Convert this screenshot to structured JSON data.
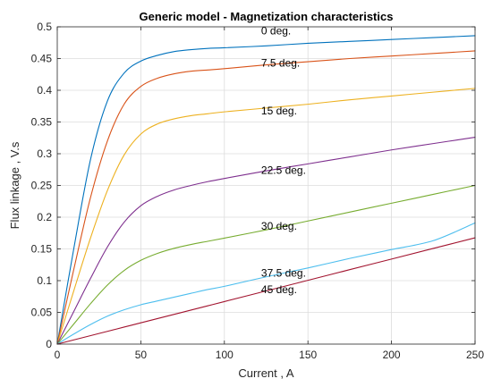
{
  "chart_data": {
    "type": "line",
    "title": "Generic model - Magnetization characteristics",
    "xlabel": "Current , A",
    "ylabel": "Flux linkage , V.s",
    "xlim": [
      0,
      250
    ],
    "ylim": [
      0,
      0.5
    ],
    "xticks": [
      0,
      50,
      100,
      150,
      200,
      250
    ],
    "yticks": [
      0,
      0.05,
      0.1,
      0.15,
      0.2,
      0.25,
      0.3,
      0.35,
      0.4,
      0.45,
      0.5
    ],
    "xtick_labels": [
      "0",
      "50",
      "100",
      "150",
      "200",
      "250"
    ],
    "ytick_labels": [
      "0",
      "0.05",
      "0.1",
      "0.15",
      "0.2",
      "0.25",
      "0.3",
      "0.35",
      "0.4",
      "0.45",
      "0.5"
    ],
    "grid": true,
    "x": [
      0,
      10,
      20,
      30,
      40,
      50,
      60,
      70,
      80,
      90,
      100,
      125,
      150,
      175,
      200,
      225,
      250
    ],
    "series": [
      {
        "name": "0 deg.",
        "color": "#0072BD",
        "values": [
          0,
          0.152,
          0.292,
          0.383,
          0.427,
          0.446,
          0.455,
          0.461,
          0.464,
          0.466,
          0.467,
          0.47,
          0.474,
          0.477,
          0.48,
          0.483,
          0.486
        ]
      },
      {
        "name": "7.5 deg.",
        "color": "#D95319",
        "values": [
          0,
          0.119,
          0.232,
          0.32,
          0.378,
          0.406,
          0.419,
          0.426,
          0.43,
          0.432,
          0.434,
          0.44,
          0.445,
          0.45,
          0.454,
          0.458,
          0.462
        ]
      },
      {
        "name": "15 deg.",
        "color": "#EDB120",
        "values": [
          0,
          0.085,
          0.168,
          0.242,
          0.298,
          0.331,
          0.347,
          0.355,
          0.36,
          0.363,
          0.366,
          0.372,
          0.378,
          0.385,
          0.391,
          0.397,
          0.403
        ]
      },
      {
        "name": "22.5 deg.",
        "color": "#7E2F8E",
        "values": [
          0,
          0.052,
          0.104,
          0.153,
          0.192,
          0.218,
          0.233,
          0.243,
          0.25,
          0.256,
          0.261,
          0.273,
          0.284,
          0.295,
          0.306,
          0.316,
          0.326
        ]
      },
      {
        "name": "30 deg.",
        "color": "#77AC30",
        "values": [
          0,
          0.032,
          0.064,
          0.093,
          0.116,
          0.132,
          0.143,
          0.151,
          0.157,
          0.162,
          0.167,
          0.18,
          0.194,
          0.208,
          0.222,
          0.236,
          0.25
        ]
      },
      {
        "name": "37.5 deg.",
        "color": "#4DBEEE",
        "values": [
          0,
          0.016,
          0.031,
          0.044,
          0.054,
          0.062,
          0.068,
          0.074,
          0.08,
          0.086,
          0.091,
          0.106,
          0.12,
          0.135,
          0.149,
          0.163,
          0.191
        ]
      },
      {
        "name": "45 deg.",
        "color": "#A2142F",
        "values": [
          0,
          0.0067,
          0.0134,
          0.0201,
          0.0268,
          0.0335,
          0.0402,
          0.0469,
          0.0536,
          0.0603,
          0.067,
          0.0838,
          0.1005,
          0.1173,
          0.134,
          0.1508,
          0.1675
        ]
      }
    ],
    "annotations": [
      {
        "text": "0 deg.",
        "x": 122,
        "y": 0.488
      },
      {
        "text": "7.5 deg.",
        "x": 122,
        "y": 0.437
      },
      {
        "text": "15 deg.",
        "x": 122,
        "y": 0.362
      },
      {
        "text": "22.5 deg.",
        "x": 122,
        "y": 0.268
      },
      {
        "text": "30 deg.",
        "x": 122,
        "y": 0.18
      },
      {
        "text": "37.5 deg.",
        "x": 122,
        "y": 0.106
      },
      {
        "text": "45 deg.",
        "x": 122,
        "y": 0.08
      }
    ]
  }
}
